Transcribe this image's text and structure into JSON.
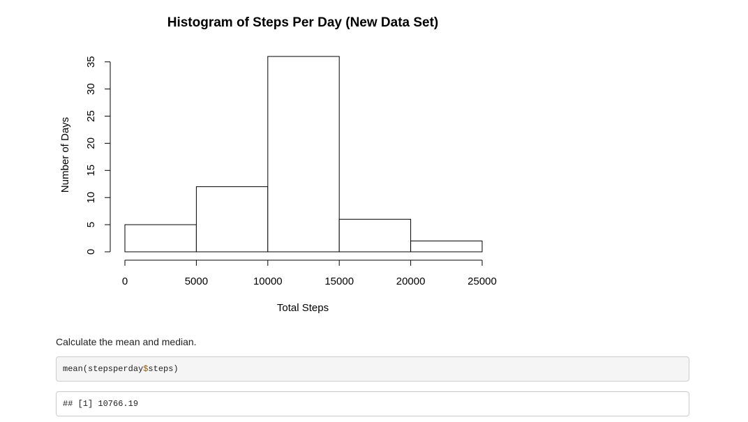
{
  "chart_data": {
    "type": "bar",
    "title": "Histogram of Steps Per Day (New Data Set)",
    "xlabel": "Total Steps",
    "ylabel": "Number of Days",
    "bins": [
      {
        "from": 0,
        "to": 5000,
        "count": 5
      },
      {
        "from": 5000,
        "to": 10000,
        "count": 12
      },
      {
        "from": 10000,
        "to": 15000,
        "count": 36
      },
      {
        "from": 15000,
        "to": 20000,
        "count": 6
      },
      {
        "from": 20000,
        "to": 25000,
        "count": 2
      }
    ],
    "xlim": [
      0,
      25000
    ],
    "ylim": [
      0,
      36
    ],
    "x_ticks": [
      0,
      5000,
      10000,
      15000,
      20000,
      25000
    ],
    "y_ticks": [
      0,
      5,
      10,
      15,
      20,
      25,
      30,
      35
    ],
    "grid": false
  },
  "prose": {
    "text": "Calculate the mean and median."
  },
  "code": {
    "fn": "mean(stepsperday",
    "sym": "$",
    "rest": "steps)",
    "output": "## [1] 10766.19"
  }
}
